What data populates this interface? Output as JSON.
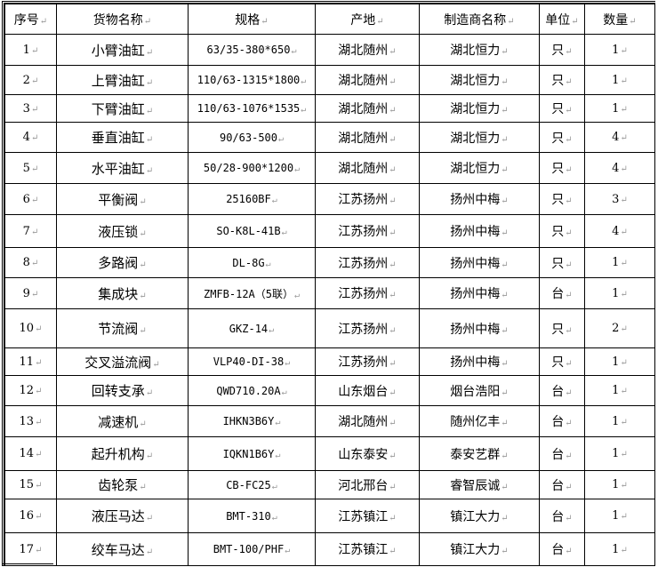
{
  "headers": [
    "序号",
    "货物名称",
    "规格",
    "产地",
    "制造商名称",
    "单位",
    "数量"
  ],
  "rows": [
    [
      "1",
      "小臂油缸",
      "63/35-380*650",
      "湖北随州",
      "湖北恒力",
      "只",
      "1"
    ],
    [
      "2",
      "上臂油缸",
      "110/63-1315*1800",
      "湖北随州",
      "湖北恒力",
      "只",
      "1"
    ],
    [
      "3",
      "下臂油缸",
      "110/63-1076*1535",
      "湖北随州",
      "湖北恒力",
      "只",
      "1"
    ],
    [
      "4",
      "垂直油缸",
      "90/63-500",
      "湖北随州",
      "湖北恒力",
      "只",
      "4"
    ],
    [
      "5",
      "水平油缸",
      "50/28-900*1200",
      "湖北随州",
      "湖北恒力",
      "只",
      "4"
    ],
    [
      "6",
      "平衡阀",
      "25160BF",
      "江苏扬州",
      "扬州中梅",
      "只",
      "3"
    ],
    [
      "7",
      "液压锁",
      "SO-K8L-41B",
      "江苏扬州",
      "扬州中梅",
      "只",
      "4"
    ],
    [
      "8",
      "多路阀",
      "DL-8G",
      "江苏扬州",
      "扬州中梅",
      "只",
      "1"
    ],
    [
      "9",
      "集成块",
      "ZMFB-12A（5联）",
      "江苏扬州",
      "扬州中梅",
      "台",
      "1"
    ],
    [
      "10",
      "节流阀",
      "GKZ-14",
      "江苏扬州",
      "扬州中梅",
      "只",
      "2"
    ],
    [
      "11",
      "交叉溢流阀",
      "VLP40-DI-38",
      "江苏扬州",
      "扬州中梅",
      "只",
      "1"
    ],
    [
      "12",
      "回转支承",
      "QWD710.20A",
      "山东烟台",
      "烟台浩阳",
      "台",
      "1"
    ],
    [
      "13",
      "减速机",
      "IHKN3B6Y",
      "湖北随州",
      "随州亿丰",
      "台",
      "1"
    ],
    [
      "14",
      "起升机构",
      "IQKN1B6Y",
      "山东泰安",
      "泰安艺群",
      "台",
      "1"
    ],
    [
      "15",
      "齿轮泵",
      "CB-FC25",
      "河北邢台",
      "睿智辰诚",
      "台",
      "1"
    ],
    [
      "16",
      "液压马达",
      "BMT-310",
      "江苏镇江",
      "镇江大力",
      "台",
      "1"
    ],
    [
      "17",
      "绞车马达",
      "BMT-100/PHF",
      "江苏镇江",
      "镇江大力",
      "台",
      "1"
    ]
  ]
}
